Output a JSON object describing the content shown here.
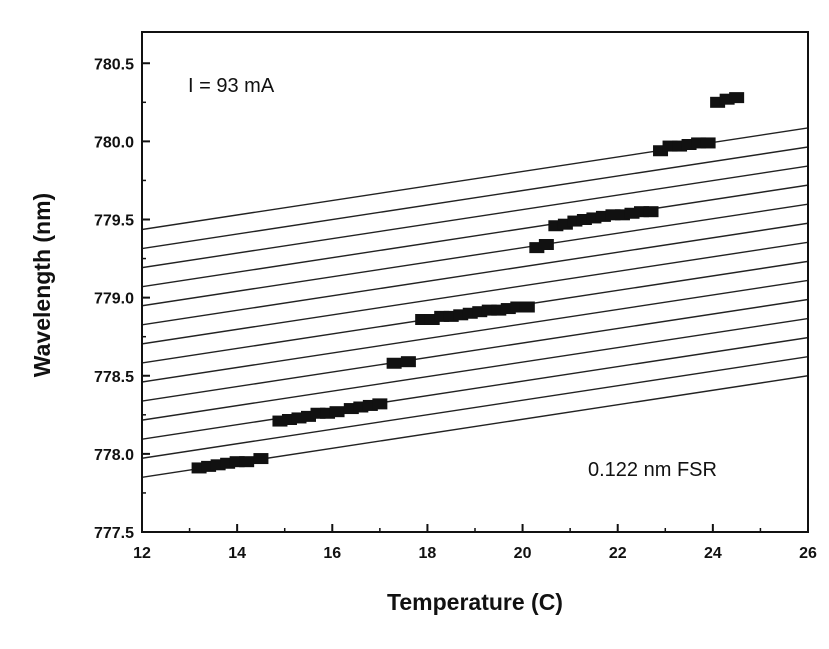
{
  "chart_data": {
    "type": "scatter",
    "xlabel": "Temperature (C)",
    "ylabel": "Wavelength (nm)",
    "xlim": [
      12,
      26
    ],
    "ylim": [
      777.5,
      780.7
    ],
    "x_ticks": [
      "12",
      "14",
      "16",
      "18",
      "20",
      "22",
      "24",
      "26"
    ],
    "y_ticks": [
      "777.5",
      "778.0",
      "778.5",
      "779.0",
      "779.5",
      "780.0",
      "780.5"
    ],
    "annotations": [
      "I = 93 mA",
      "0.122 nm FSR"
    ],
    "grid": false,
    "mode_lines": {
      "count": 14,
      "fsr": 0.122,
      "lowest_line_endpoints": [
        [
          12,
          777.85
        ],
        [
          26,
          778.5
        ]
      ]
    },
    "points": [
      [
        13.2,
        777.91
      ],
      [
        13.4,
        777.92
      ],
      [
        13.6,
        777.93
      ],
      [
        13.8,
        777.94
      ],
      [
        14.0,
        777.95
      ],
      [
        14.2,
        777.95
      ],
      [
        14.5,
        777.97
      ],
      [
        14.9,
        778.21
      ],
      [
        15.1,
        778.22
      ],
      [
        15.3,
        778.23
      ],
      [
        15.5,
        778.24
      ],
      [
        15.7,
        778.26
      ],
      [
        15.9,
        778.26
      ],
      [
        16.1,
        778.27
      ],
      [
        16.4,
        778.29
      ],
      [
        16.6,
        778.3
      ],
      [
        16.8,
        778.31
      ],
      [
        17.0,
        778.32
      ],
      [
        17.3,
        778.58
      ],
      [
        17.6,
        778.59
      ],
      [
        17.9,
        778.86
      ],
      [
        18.1,
        778.86
      ],
      [
        18.3,
        778.88
      ],
      [
        18.5,
        778.88
      ],
      [
        18.7,
        778.89
      ],
      [
        18.9,
        778.9
      ],
      [
        19.1,
        778.91
      ],
      [
        19.3,
        778.92
      ],
      [
        19.5,
        778.92
      ],
      [
        19.7,
        778.93
      ],
      [
        19.9,
        778.94
      ],
      [
        20.1,
        778.94
      ],
      [
        20.3,
        779.32
      ],
      [
        20.5,
        779.34
      ],
      [
        20.7,
        779.46
      ],
      [
        20.9,
        779.47
      ],
      [
        21.1,
        779.49
      ],
      [
        21.3,
        779.5
      ],
      [
        21.5,
        779.51
      ],
      [
        21.7,
        779.52
      ],
      [
        21.9,
        779.53
      ],
      [
        22.1,
        779.53
      ],
      [
        22.3,
        779.54
      ],
      [
        22.5,
        779.55
      ],
      [
        22.7,
        779.55
      ],
      [
        22.9,
        779.94
      ],
      [
        23.1,
        779.97
      ],
      [
        23.3,
        779.97
      ],
      [
        23.5,
        779.98
      ],
      [
        23.7,
        779.99
      ],
      [
        23.9,
        779.99
      ],
      [
        24.1,
        780.25
      ],
      [
        24.3,
        780.27
      ],
      [
        24.5,
        780.28
      ]
    ]
  }
}
